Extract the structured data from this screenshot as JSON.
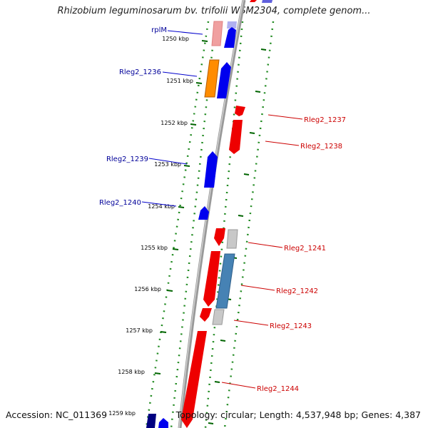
{
  "title": "Rhizobium leguminosarum bv. trifolii WSM2304, complete genom...",
  "footer": {
    "accession": "Accession: NC_011369",
    "topology": "Topology: circular; Length: 4,537,948 bp; Genes: 4,387"
  },
  "colors": {
    "forward_gene": "#0000ee",
    "reverse_gene": "#ee0000",
    "dark_blue_gene": "#000080",
    "light_red_gene": "#f0a0a0",
    "light_blue_gene": "#a0a0ee",
    "orange_gene": "#ff8c00",
    "grey_gene": "#c0c0c0",
    "steel_blue_gene": "#4682b4",
    "backbone": "#888888",
    "tick_major": "#006400",
    "tick_dot": "#228b22",
    "label_blue": "#000099",
    "label_red": "#cc0000"
  },
  "ruler_labels": [
    "1250 kbp",
    "1251 kbp",
    "1252 kbp",
    "1253 kbp",
    "1254 kbp",
    "1255 kbp",
    "1256 kbp",
    "1257 kbp",
    "1258 kbp",
    "1259 kbp"
  ],
  "left_labels": [
    "rplM",
    "Rleg2_1236",
    "Rleg2_1239",
    "Rleg2_1240"
  ],
  "right_labels": [
    "Rleg2_1237",
    "Rleg2_1238",
    "Rleg2_1241",
    "Rleg2_1242",
    "Rleg2_1243",
    "Rleg2_1244"
  ]
}
